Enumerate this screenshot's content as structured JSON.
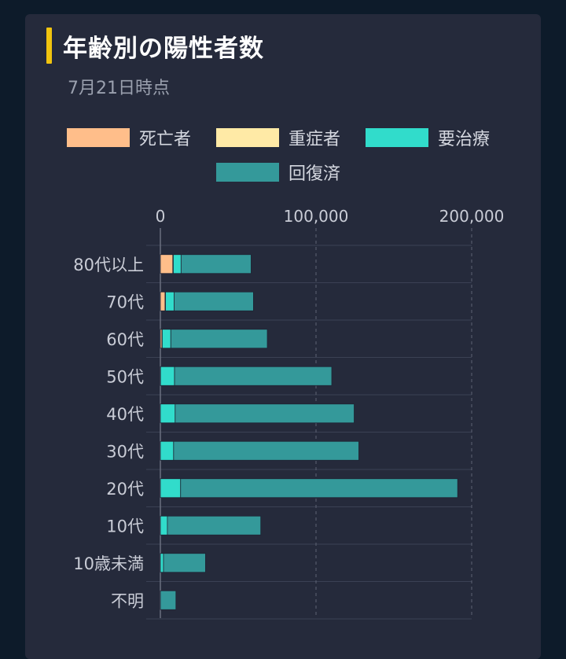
{
  "header": {
    "title": "年齢別の陽性者数",
    "subtitle": "7月21日時点"
  },
  "colors": {
    "死亡者": "#ffbe8a",
    "重症者": "#ffeaa6",
    "要治療": "#31dccb",
    "回復済": "#34999a"
  },
  "chart_data": {
    "type": "bar",
    "orientation": "horizontal",
    "stacked": true,
    "title": "年齢別の陽性者数",
    "subtitle": "7月21日時点",
    "categories": [
      "80代以上",
      "70代",
      "60代",
      "50代",
      "40代",
      "30代",
      "20代",
      "10代",
      "10歳未満",
      "不明"
    ],
    "series": [
      {
        "name": "死亡者",
        "color": "#ffbe8a",
        "values": [
          8000,
          3000,
          1000,
          0,
          0,
          0,
          0,
          0,
          0,
          0
        ]
      },
      {
        "name": "重症者",
        "color": "#ffeaa6",
        "values": [
          300,
          300,
          200,
          100,
          0,
          0,
          0,
          0,
          0,
          0
        ]
      },
      {
        "name": "要治療",
        "color": "#31dccb",
        "values": [
          5000,
          5500,
          5500,
          9000,
          9500,
          8500,
          13000,
          4500,
          2000,
          0
        ]
      },
      {
        "name": "回復済",
        "color": "#34999a",
        "values": [
          45000,
          51000,
          62000,
          101000,
          115000,
          119000,
          178000,
          60000,
          27000,
          10000
        ]
      }
    ],
    "xlim": [
      0,
      200000
    ],
    "ticks": [
      "0",
      "100,000",
      "200,000"
    ],
    "tick_values": [
      0,
      100000,
      200000
    ],
    "legend": [
      "死亡者",
      "重症者",
      "要治療",
      "回復済"
    ],
    "legend_position": "top",
    "grid": true
  }
}
